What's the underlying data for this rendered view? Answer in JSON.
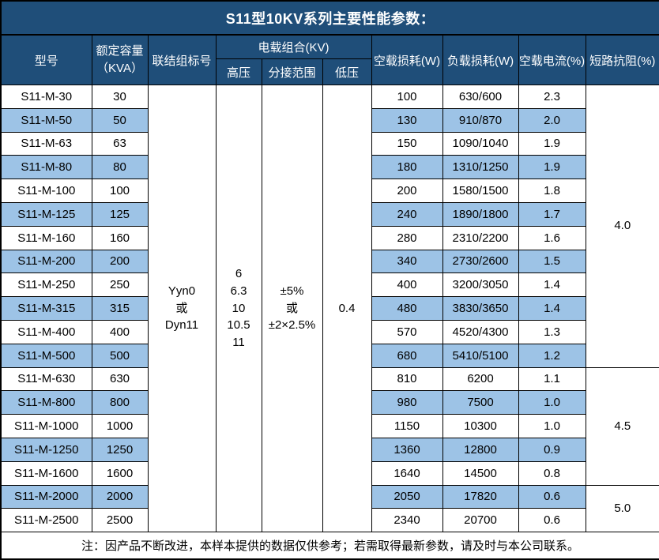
{
  "title": "S11型10KV系列主要性能参数：",
  "colors": {
    "header_bg": "#1F4E79",
    "header_text": "#FFFFFF",
    "stripe_row_bg": "#9DC3E6",
    "row_bg": "#FFFFFF",
    "border": "#000000",
    "body_text": "#000000"
  },
  "header": {
    "model": "型号",
    "capacity_line1": "额定容量",
    "capacity_line2": "（KVA）",
    "connection": "联结组标号",
    "voltage_group": "电载组合(KV)",
    "hv": "高压",
    "tap_range": "分接范围",
    "lv": "低压",
    "no_load_loss": "空载损耗(W)",
    "load_loss": "负载损耗(W)",
    "no_load_current": "空载电流(%)",
    "short_circuit_impedance": "短路抗阻(%)"
  },
  "merged": {
    "connection_lines": [
      "Yyn0",
      "或",
      "Dyn11"
    ],
    "hv_lines": [
      "6",
      "6.3",
      "10",
      "10.5",
      "11"
    ],
    "tap_range_lines": [
      "±5%",
      "或",
      "±2×2.5%"
    ],
    "lv_value": "0.4"
  },
  "impedance_groups": [
    {
      "value": "4.0",
      "rows": 12
    },
    {
      "value": "4.5",
      "rows": 5
    },
    {
      "value": "5.0",
      "rows": 2
    }
  ],
  "rows": [
    {
      "model": "S11-M-30",
      "capacity": "30",
      "no_load_loss": "100",
      "load_loss": "630/600",
      "no_load_current": "2.3"
    },
    {
      "model": "S11-M-50",
      "capacity": "50",
      "no_load_loss": "130",
      "load_loss": "910/870",
      "no_load_current": "2.0"
    },
    {
      "model": "S11-M-63",
      "capacity": "63",
      "no_load_loss": "150",
      "load_loss": "1090/1040",
      "no_load_current": "1.9"
    },
    {
      "model": "S11-M-80",
      "capacity": "80",
      "no_load_loss": "180",
      "load_loss": "1310/1250",
      "no_load_current": "1.9"
    },
    {
      "model": "S11-M-100",
      "capacity": "100",
      "no_load_loss": "200",
      "load_loss": "1580/1500",
      "no_load_current": "1.8"
    },
    {
      "model": "S11-M-125",
      "capacity": "125",
      "no_load_loss": "240",
      "load_loss": "1890/1800",
      "no_load_current": "1.7"
    },
    {
      "model": "S11-M-160",
      "capacity": "160",
      "no_load_loss": "280",
      "load_loss": "2310/2200",
      "no_load_current": "1.6"
    },
    {
      "model": "S11-M-200",
      "capacity": "200",
      "no_load_loss": "340",
      "load_loss": "2730/2600",
      "no_load_current": "1.5"
    },
    {
      "model": "S11-M-250",
      "capacity": "250",
      "no_load_loss": "400",
      "load_loss": "3200/3050",
      "no_load_current": "1.4"
    },
    {
      "model": "S11-M-315",
      "capacity": "315",
      "no_load_loss": "480",
      "load_loss": "3830/3650",
      "no_load_current": "1.4"
    },
    {
      "model": "S11-M-400",
      "capacity": "400",
      "no_load_loss": "570",
      "load_loss": "4520/4300",
      "no_load_current": "1.3"
    },
    {
      "model": "S11-M-500",
      "capacity": "500",
      "no_load_loss": "680",
      "load_loss": "5410/5100",
      "no_load_current": "1.2"
    },
    {
      "model": "S11-M-630",
      "capacity": "630",
      "no_load_loss": "810",
      "load_loss": "6200",
      "no_load_current": "1.1"
    },
    {
      "model": "S11-M-800",
      "capacity": "800",
      "no_load_loss": "980",
      "load_loss": "7500",
      "no_load_current": "1.0"
    },
    {
      "model": "S11-M-1000",
      "capacity": "1000",
      "no_load_loss": "1150",
      "load_loss": "10300",
      "no_load_current": "1.0"
    },
    {
      "model": "S11-M-1250",
      "capacity": "1250",
      "no_load_loss": "1360",
      "load_loss": "12800",
      "no_load_current": "0.9"
    },
    {
      "model": "S11-M-1600",
      "capacity": "1600",
      "no_load_loss": "1640",
      "load_loss": "14500",
      "no_load_current": "0.8"
    },
    {
      "model": "S11-M-2000",
      "capacity": "2000",
      "no_load_loss": "2050",
      "load_loss": "17820",
      "no_load_current": "0.6"
    },
    {
      "model": "S11-M-2500",
      "capacity": "2500",
      "no_load_loss": "2340",
      "load_loss": "20700",
      "no_load_current": "0.6"
    }
  ],
  "footer": "注：因产品不断改进，本样本提供的数据仅供参考；若需取得最新参数，请及时与本公司联系。"
}
